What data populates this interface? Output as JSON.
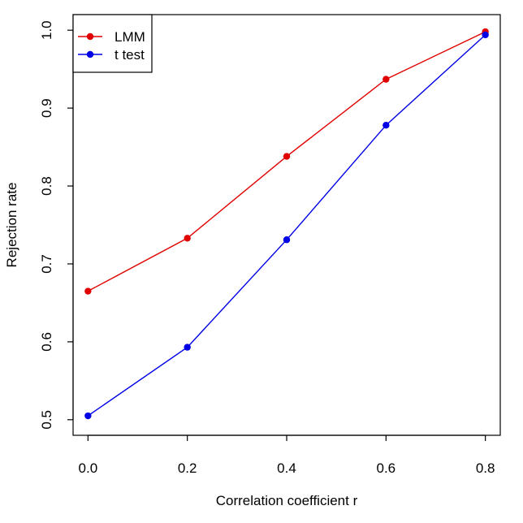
{
  "chart_data": {
    "type": "line",
    "title": "",
    "xlabel": "Correlation coefficient r",
    "ylabel": "Rejection rate",
    "xlim": [
      -0.03,
      0.83
    ],
    "ylim": [
      0.48,
      1.02
    ],
    "x_ticks": [
      0.0,
      0.2,
      0.4,
      0.6,
      0.8
    ],
    "x_tick_labels": [
      "0.0",
      "0.2",
      "0.4",
      "0.6",
      "0.8"
    ],
    "y_ticks": [
      0.5,
      0.6,
      0.7,
      0.8,
      0.9,
      1.0
    ],
    "y_tick_labels": [
      "0.5",
      "0.6",
      "0.7",
      "0.8",
      "0.9",
      "1.0"
    ],
    "grid": false,
    "legend_position": "top-left",
    "x": [
      0.0,
      0.2,
      0.4,
      0.6,
      0.8
    ],
    "series": [
      {
        "name": "LMM",
        "color": "#e00000",
        "values": [
          0.665,
          0.733,
          0.838,
          0.937,
          0.998
        ]
      },
      {
        "name": "t test",
        "color": "#0000e6",
        "values": [
          0.505,
          0.593,
          0.731,
          0.878,
          0.994
        ]
      }
    ]
  }
}
